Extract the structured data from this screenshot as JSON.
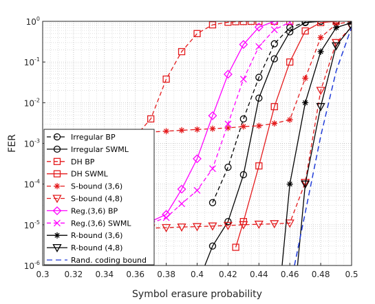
{
  "chart_data": {
    "type": "line",
    "xlabel": "Symbol erasure probability",
    "ylabel": "FER",
    "xlim": [
      0.3,
      0.5
    ],
    "ylim": [
      1e-06,
      1
    ],
    "yscale": "log",
    "grid": true,
    "legend_position": "bottom-left",
    "x_ticks": [
      "0.3",
      "0.32",
      "0.34",
      "0.36",
      "0.38",
      "0.4",
      "0.42",
      "0.44",
      "0.46",
      "0.48",
      "0.5"
    ],
    "y_ticks": [
      {
        "base": "10",
        "exp": "0"
      },
      {
        "base": "10",
        "exp": "-1"
      },
      {
        "base": "10",
        "exp": "-2"
      },
      {
        "base": "10",
        "exp": "-3"
      },
      {
        "base": "10",
        "exp": "-4"
      },
      {
        "base": "10",
        "exp": "-5"
      },
      {
        "base": "10",
        "exp": "-6"
      }
    ],
    "series": [
      {
        "name": "Irregular BP",
        "color": "#000000",
        "dash": "6,4",
        "marker": "circle",
        "x": [
          0.41,
          0.42,
          0.43,
          0.44,
          0.45,
          0.46,
          0.47,
          0.48,
          0.49
        ],
        "y": [
          3.5e-05,
          0.00026,
          0.004,
          0.042,
          0.28,
          0.7,
          0.95,
          1.0,
          1.0
        ]
      },
      {
        "name": "Irregular SWML",
        "color": "#000000",
        "dash": "",
        "marker": "circle",
        "x": [
          0.405,
          0.41,
          0.42,
          0.43,
          0.44,
          0.45,
          0.46,
          0.47,
          0.48,
          0.49
        ],
        "y": [
          1e-06,
          3e-06,
          1.2e-05,
          0.00017,
          0.013,
          0.12,
          0.55,
          0.93,
          1.0,
          1.0
        ]
      },
      {
        "name": "DH BP",
        "color": "#e41a1c",
        "dash": "6,4",
        "marker": "square",
        "x": [
          0.36,
          0.37,
          0.38,
          0.39,
          0.4,
          0.41,
          0.42,
          0.425,
          0.43,
          0.435,
          0.44,
          0.45,
          0.46
        ],
        "y": [
          0.0015,
          0.004,
          0.038,
          0.18,
          0.5,
          0.82,
          0.95,
          0.98,
          0.99,
          1.0,
          1.0,
          1.0,
          1.0
        ]
      },
      {
        "name": "DH SWML",
        "color": "#e41a1c",
        "dash": "",
        "marker": "square",
        "x": [
          0.425,
          0.43,
          0.44,
          0.45,
          0.46,
          0.47,
          0.48,
          0.49
        ],
        "y": [
          2.8e-06,
          1.2e-05,
          0.00028,
          0.008,
          0.1,
          0.58,
          0.93,
          1.0
        ]
      },
      {
        "name": "S-bound (3,6)",
        "color": "#e41a1c",
        "dash": "6,4",
        "marker": "star",
        "x": [
          0.36,
          0.37,
          0.38,
          0.39,
          0.4,
          0.41,
          0.42,
          0.43,
          0.44,
          0.45,
          0.46,
          0.47,
          0.48,
          0.49,
          0.5
        ],
        "y": [
          0.0018,
          0.0019,
          0.002,
          0.0021,
          0.0022,
          0.0023,
          0.0024,
          0.0026,
          0.0027,
          0.0031,
          0.0038,
          0.04,
          0.4,
          0.85,
          1.0
        ]
      },
      {
        "name": "S-bound (4,8)",
        "color": "#e41a1c",
        "dash": "6,4",
        "marker": "triangle",
        "x": [
          0.36,
          0.37,
          0.38,
          0.39,
          0.4,
          0.41,
          0.42,
          0.43,
          0.44,
          0.45,
          0.46,
          0.47,
          0.48,
          0.49,
          0.5
        ],
        "y": [
          8e-06,
          8.3e-06,
          8.5e-06,
          8.8e-06,
          9e-06,
          9.3e-06,
          9.6e-06,
          1e-05,
          1.03e-05,
          1.06e-05,
          1.1e-05,
          0.00011,
          0.02,
          0.3,
          0.72
        ]
      },
      {
        "name": "Reg.(3,6) BP",
        "color": "#ff00ff",
        "dash": "",
        "marker": "diamond",
        "x": [
          0.37,
          0.38,
          0.39,
          0.4,
          0.41,
          0.42,
          0.43,
          0.44,
          0.45
        ],
        "y": [
          1.2e-05,
          1.8e-05,
          7.5e-05,
          0.00042,
          0.0048,
          0.05,
          0.27,
          0.72,
          1.0
        ]
      },
      {
        "name": "Reg.(3,6) SWML",
        "color": "#ff00ff",
        "dash": "6,4",
        "marker": "x",
        "x": [
          0.37,
          0.38,
          0.39,
          0.4,
          0.41,
          0.42,
          0.43,
          0.44,
          0.45,
          0.46
        ],
        "y": [
          1.1e-05,
          1.5e-05,
          3.3e-05,
          7e-05,
          0.00024,
          0.003,
          0.038,
          0.24,
          0.62,
          0.95
        ]
      },
      {
        "name": "R-bound (3,6)",
        "color": "#000000",
        "dash": "",
        "marker": "star",
        "x": [
          0.455,
          0.46,
          0.47,
          0.48,
          0.49,
          0.5
        ],
        "y": [
          1e-06,
          0.0001,
          0.01,
          0.18,
          0.7,
          0.93
        ]
      },
      {
        "name": "R-bound (4,8)",
        "color": "#000000",
        "dash": "",
        "marker": "triangle",
        "x": [
          0.465,
          0.47,
          0.48,
          0.49,
          0.5
        ],
        "y": [
          1e-06,
          0.0001,
          0.008,
          0.25,
          0.75
        ]
      },
      {
        "name": "Rand. coding bound",
        "color": "#1f3bd8",
        "dash": "8,5",
        "marker": "none",
        "x": [
          0.463,
          0.47,
          0.48,
          0.49,
          0.5
        ],
        "y": [
          1e-06,
          2e-05,
          0.0015,
          0.06,
          0.72
        ]
      }
    ]
  }
}
